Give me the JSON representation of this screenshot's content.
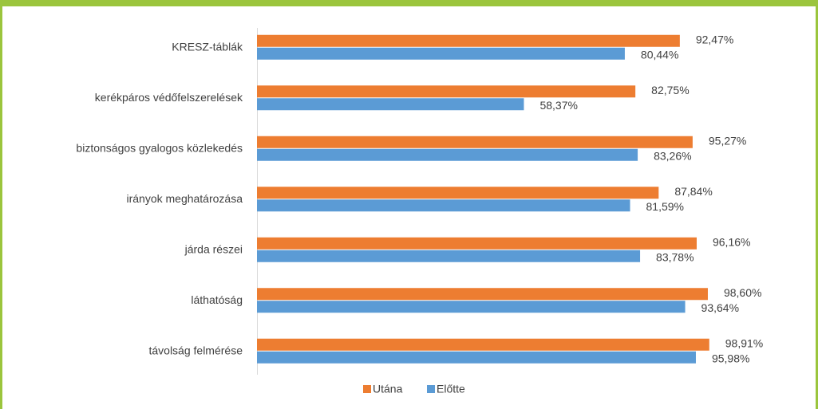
{
  "chart_data": {
    "type": "hbar",
    "categories": [
      "KRESZ-táblák",
      "kerékpáros védőfelszerelések",
      "biztonságos gyalogos közlekedés",
      "irányok meghatározása",
      "járda részei",
      "láthatóság",
      "távolság felmérése"
    ],
    "series": [
      {
        "name": "Utána",
        "color": "#ed7d31",
        "values": [
          92.47,
          82.75,
          95.27,
          87.84,
          96.16,
          98.6,
          98.91
        ],
        "value_labels": [
          "92,47%",
          "82,75%",
          "95,27%",
          "87,84%",
          "96,16%",
          "98,60%",
          "98,91%"
        ]
      },
      {
        "name": "Előtte",
        "color": "#5b9bd5",
        "values": [
          80.44,
          58.37,
          83.26,
          81.59,
          83.78,
          93.64,
          95.98
        ],
        "value_labels": [
          "80,44%",
          "58,37%",
          "83,26%",
          "81,59%",
          "83,78%",
          "93,64%",
          "95,98%"
        ]
      }
    ],
    "xlim": [
      0,
      100
    ],
    "legend": "bottom"
  }
}
